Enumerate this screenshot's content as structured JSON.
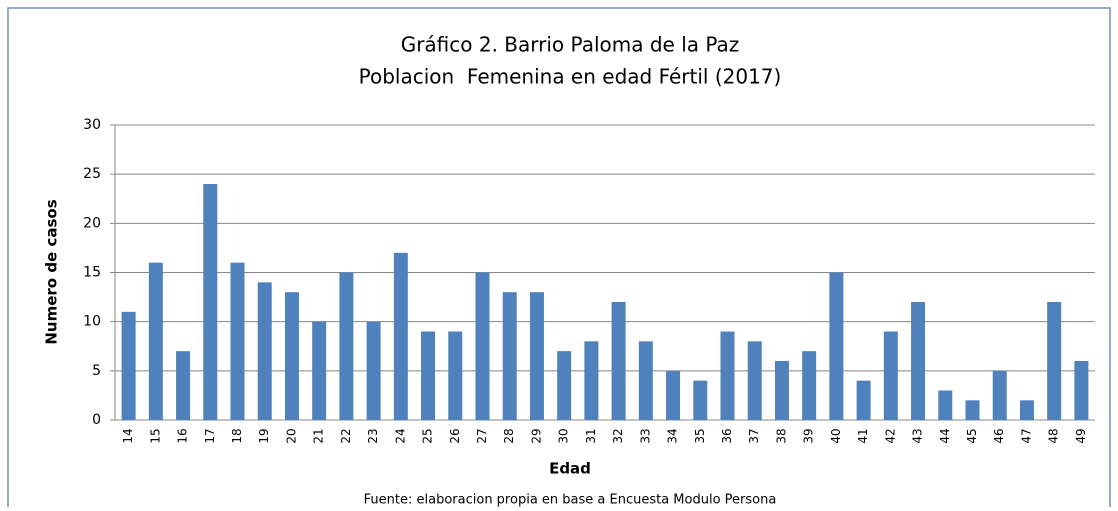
{
  "chart_data": {
    "type": "bar",
    "title": "Gráfico 2. Barrio Paloma de la Paz",
    "subtitle": "Poblacion  Femenina en edad Fértil (2017)",
    "x_label": "Edad",
    "y_label": "Numero de casos",
    "source": "Fuente: elaboracion propia en base a Encuesta Modulo Persona",
    "categories": [
      "14",
      "15",
      "16",
      "17",
      "18",
      "19",
      "20",
      "21",
      "22",
      "23",
      "24",
      "25",
      "26",
      "27",
      "28",
      "29",
      "30",
      "31",
      "32",
      "33",
      "34",
      "35",
      "36",
      "37",
      "38",
      "39",
      "40",
      "41",
      "42",
      "43",
      "44",
      "45",
      "46",
      "47",
      "48",
      "49"
    ],
    "values": [
      11,
      16,
      7,
      24,
      16,
      14,
      13,
      10,
      15,
      10,
      17,
      9,
      9,
      15,
      13,
      13,
      7,
      8,
      12,
      8,
      5,
      4,
      9,
      8,
      6,
      7,
      15,
      4,
      9,
      12,
      3,
      2,
      5,
      2,
      12,
      6
    ],
    "color": "#4f81bd",
    "ylim": [
      0,
      30
    ],
    "yticks": [
      0,
      5,
      10,
      15,
      20,
      25,
      30
    ],
    "grid": true
  }
}
